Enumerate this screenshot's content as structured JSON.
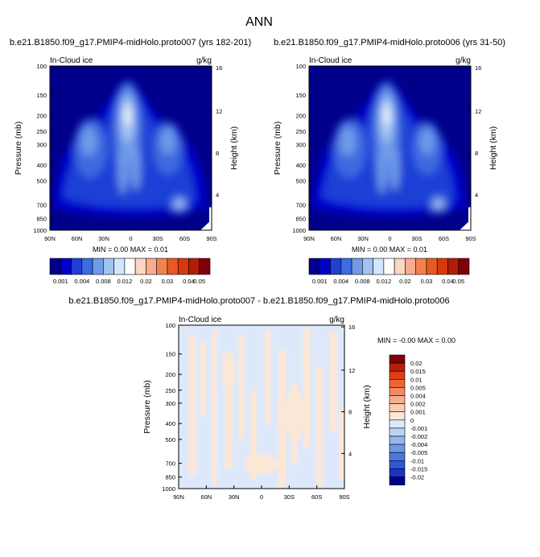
{
  "page_title": "ANN",
  "colors": {
    "abs": [
      "#00008b",
      "#0000cd",
      "#1f3fd6",
      "#3d6be0",
      "#6f9be8",
      "#a2c3f2",
      "#d3e6fb",
      "#fdfdfd",
      "#fbd7c4",
      "#f8ae8e",
      "#f2834f",
      "#e85a21",
      "#d8390b",
      "#b31c08",
      "#80000a"
    ],
    "diff": [
      "#00008b",
      "#1a33c4",
      "#2f57d6",
      "#4a78e0",
      "#6e98e8",
      "#95b6f0",
      "#bcd3f6",
      "#dde9fb",
      "#fde7d6",
      "#fbcdb0",
      "#f8ae8e",
      "#f48a60",
      "#ec6536",
      "#dc3e18",
      "#b5200a",
      "#80000a"
    ]
  },
  "chart_data": [
    {
      "type": "heatmap",
      "name": "top-left",
      "title": "b.e21.B1850.f09_g17.PMIP4-midHolo.proto007 (yrs 182-201)",
      "variable": "In-Cloud ice",
      "units": "g/kg",
      "xlabel": "",
      "ylabel": "Pressure (mb)",
      "ylabel_right": "Height (km)",
      "x_ticks": [
        "90N",
        "60N",
        "30N",
        "0",
        "30S",
        "60S",
        "90S"
      ],
      "y_ticks": [
        "100",
        "150",
        "200",
        "250",
        "300",
        "400",
        "500",
        "700",
        "850",
        "1000"
      ],
      "height_ticks": [
        "16",
        "12",
        "8",
        "4"
      ],
      "min": "0.00",
      "max": "0.01",
      "stats_text": "MIN =   0.00   MAX =   0.01",
      "colorbar_labels": [
        "0.001",
        "0.004",
        "0.008",
        "0.012",
        "0.02",
        "0.03",
        "0.04",
        "0.05"
      ],
      "levels": [
        0.001,
        0.002,
        0.004,
        0.006,
        0.008,
        0.01,
        0.012,
        0.015,
        0.02,
        0.025,
        0.03,
        0.035,
        0.04,
        0.05
      ]
    },
    {
      "type": "heatmap",
      "name": "top-right",
      "title": "b.e21.B1850.f09_g17.PMIP4-midHolo.proto006 (yrs 31-50)",
      "variable": "In-Cloud ice",
      "units": "g/kg",
      "xlabel": "",
      "ylabel": "Pressure (mb)",
      "ylabel_right": "Height (km)",
      "x_ticks": [
        "90N",
        "60N",
        "30N",
        "0",
        "30S",
        "60S",
        "90S"
      ],
      "y_ticks": [
        "100",
        "150",
        "200",
        "250",
        "300",
        "400",
        "500",
        "700",
        "850",
        "1000"
      ],
      "height_ticks": [
        "16",
        "12",
        "8",
        "4"
      ],
      "min": "0.00",
      "max": "0.01",
      "stats_text": "MIN =   0.00   MAX =   0.01",
      "colorbar_labels": [
        "0.001",
        "0.004",
        "0.008",
        "0.012",
        "0.02",
        "0.03",
        "0.04",
        "0.05"
      ],
      "levels": [
        0.001,
        0.002,
        0.004,
        0.006,
        0.008,
        0.01,
        0.012,
        0.015,
        0.02,
        0.025,
        0.03,
        0.035,
        0.04,
        0.05
      ]
    },
    {
      "type": "heatmap",
      "name": "difference",
      "title": "b.e21.B1850.f09_g17.PMIP4-midHolo.proto007 - b.e21.B1850.f09_g17.PMIP4-midHolo.proto006",
      "variable": "In-Cloud ice",
      "units": "g/kg",
      "xlabel": "",
      "ylabel": "Pressure (mb)",
      "ylabel_right": "Height (km)",
      "x_ticks": [
        "90N",
        "60N",
        "30N",
        "0",
        "30S",
        "60S",
        "90S"
      ],
      "y_ticks": [
        "100",
        "150",
        "200",
        "250",
        "300",
        "400",
        "500",
        "700",
        "850",
        "1000"
      ],
      "height_ticks": [
        "16",
        "12",
        "8",
        "4"
      ],
      "min": "-0.00",
      "max": "0.00",
      "stats_text": "MIN = -0.00   MAX =   0.00",
      "colorbar_labels": [
        "0.02",
        "0.015",
        "0.01",
        "0.005",
        "0.004",
        "0.002",
        "0.001",
        "0",
        "-0.001",
        "-0.002",
        "-0.004",
        "-0.005",
        "-0.01",
        "-0.015",
        "-0.02"
      ]
    }
  ]
}
